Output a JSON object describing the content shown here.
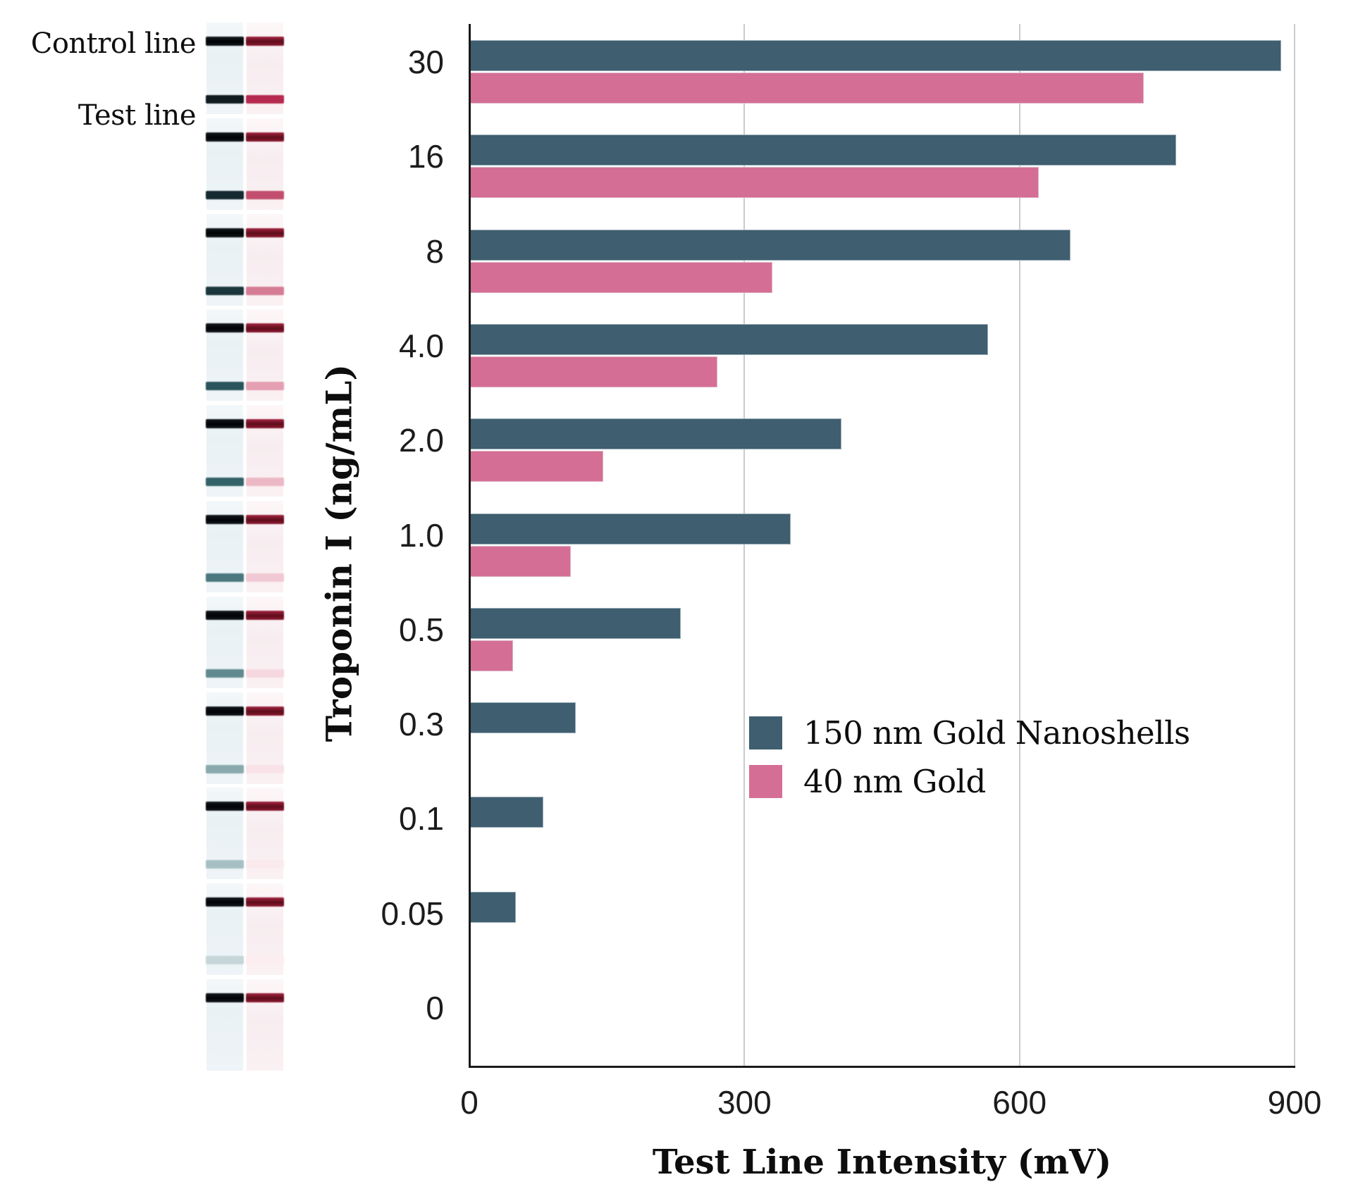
{
  "chart_data": {
    "type": "bar",
    "orientation": "horizontal",
    "categories": [
      "30",
      "16",
      "8",
      "4.0",
      "2.0",
      "1.0",
      "0.5",
      "0.3",
      "0.1",
      "0.05",
      "0"
    ],
    "series": [
      {
        "name": "150 nm Gold Nanoshells",
        "color": "#3f5e70",
        "values": [
          885,
          770,
          655,
          565,
          405,
          350,
          230,
          115,
          80,
          50,
          0
        ]
      },
      {
        "name": "40 nm Gold",
        "color": "#d56e94",
        "values": [
          735,
          620,
          330,
          270,
          145,
          110,
          47,
          0,
          0,
          0,
          0
        ]
      }
    ],
    "xlabel": "Test Line Intensity (mV)",
    "ylabel": "Troponin I (ng/mL)",
    "xlim": [
      0,
      900
    ],
    "xticks": [
      "0",
      "300",
      "600",
      "900"
    ],
    "grid": true,
    "gridcolor": "#c9cbcc",
    "legend_position": "inside-center-right"
  },
  "strip_panel": {
    "control_label": "Control line",
    "test_label": "Test line",
    "shell_control_color": "#14191d",
    "gold_control_color": "#5d0c1a",
    "rows": [
      {
        "conc": "30",
        "shell_test": "#0f1b1f",
        "gold_test": "#b52a4e"
      },
      {
        "conc": "16",
        "shell_test": "#152930",
        "gold_test": "#c24e6d"
      },
      {
        "conc": "8",
        "shell_test": "#1b363c",
        "gold_test": "#d57c95"
      },
      {
        "conc": "4.0",
        "shell_test": "#2a545b",
        "gold_test": "#e49fb2"
      },
      {
        "conc": "2.0",
        "shell_test": "#336268",
        "gold_test": "#ecb8c6"
      },
      {
        "conc": "1.0",
        "shell_test": "#4b787f",
        "gold_test": "#f1c9d4"
      },
      {
        "conc": "0.5",
        "shell_test": "#618a90",
        "gold_test": "#f5d8e0"
      },
      {
        "conc": "0.3",
        "shell_test": "#8aa9ad",
        "gold_test": "#f8e2e8"
      },
      {
        "conc": "0.1",
        "shell_test": "#a6bfc2",
        "gold_test": "#fae9ed"
      },
      {
        "conc": "0.05",
        "shell_test": "#c6d6d8",
        "gold_test": "#fbedf0"
      },
      {
        "conc": "0",
        "shell_test": "none",
        "gold_test": "none"
      }
    ]
  },
  "colors": {
    "axis": "#1a1a1a",
    "text": "#1c1c1c"
  }
}
